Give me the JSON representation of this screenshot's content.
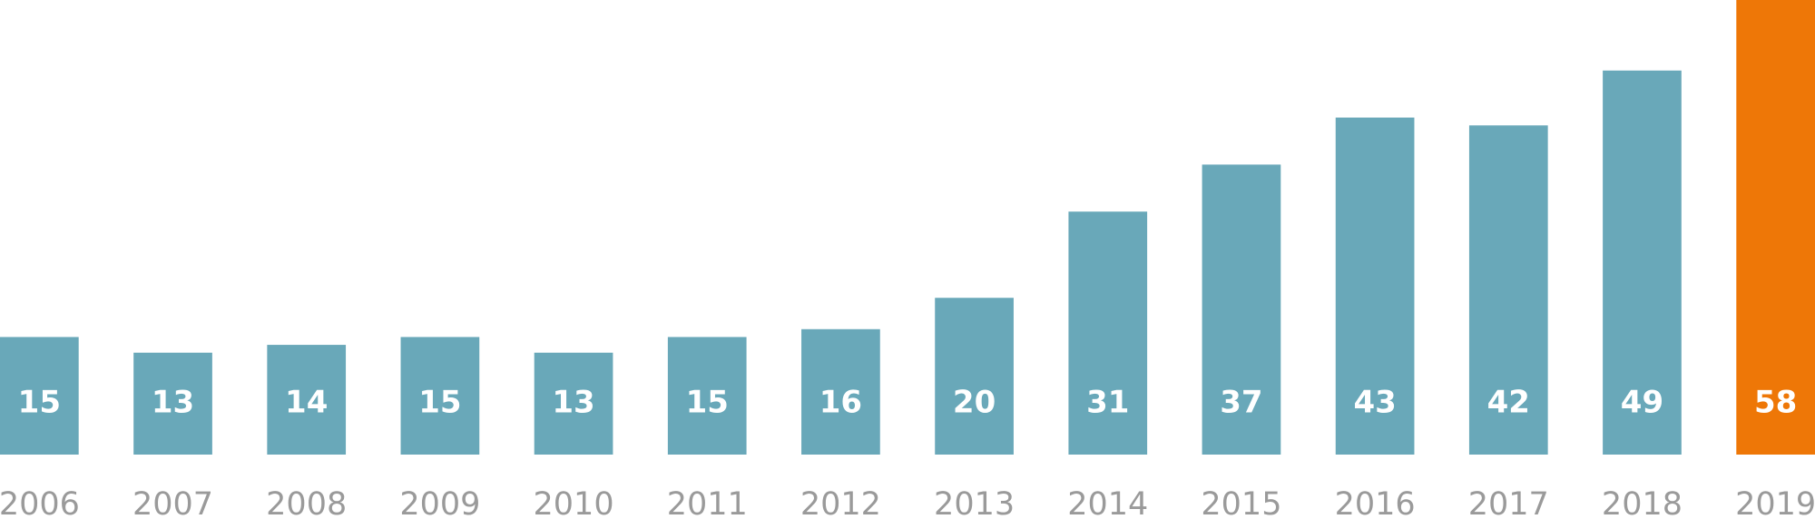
{
  "chart_data": {
    "type": "bar",
    "categories": [
      "2006",
      "2007",
      "2008",
      "2009",
      "2010",
      "2011",
      "2012",
      "2013",
      "2014",
      "2015",
      "2016",
      "2017",
      "2018",
      "2019"
    ],
    "values": [
      15,
      13,
      14,
      15,
      13,
      15,
      16,
      20,
      31,
      37,
      43,
      42,
      49,
      58
    ],
    "colors": [
      "#69a8b9",
      "#69a8b9",
      "#69a8b9",
      "#69a8b9",
      "#69a8b9",
      "#69a8b9",
      "#69a8b9",
      "#69a8b9",
      "#69a8b9",
      "#69a8b9",
      "#69a8b9",
      "#69a8b9",
      "#69a8b9",
      "#ee7707"
    ],
    "ylim": [
      0,
      58
    ]
  }
}
